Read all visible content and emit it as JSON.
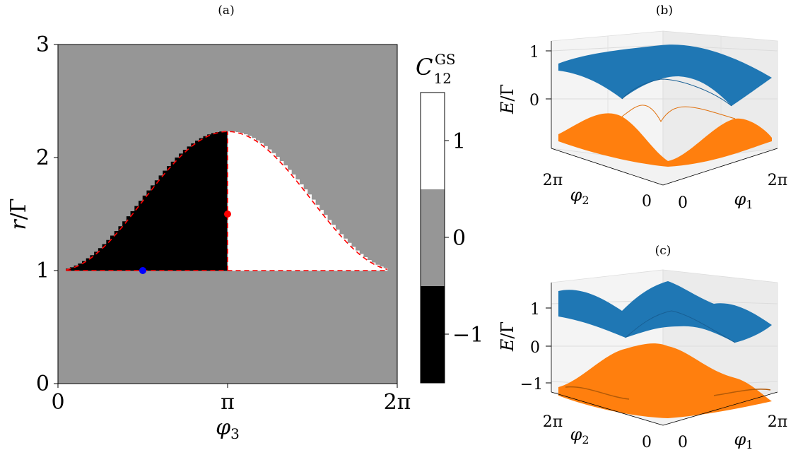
{
  "chart_data": [
    {
      "panel_label": "(a)",
      "type": "heatmap",
      "xlabel": "φ3",
      "xlabel_main": "φ",
      "xlabel_sub": "3",
      "ylabel": "r/Γ",
      "ylabel_var": "r",
      "ylabel_rest": "/Γ",
      "xlim": [
        0,
        6.2832
      ],
      "ylim": [
        0,
        3
      ],
      "x_ticks": [
        0,
        3.1416,
        6.2832
      ],
      "x_tick_labels": [
        "0",
        "π",
        "2π"
      ],
      "y_ticks": [
        0,
        1,
        2,
        3
      ],
      "y_tick_labels": [
        "0",
        "1",
        "2",
        "3"
      ],
      "background_value": 0,
      "regions": [
        {
          "name": "black lobe",
          "value": -1,
          "phi_range": [
            0.15,
            3.1416
          ],
          "r_lower": 1.0,
          "upper_boundary": "r = 1 + 1.23 sin^2(φ/2)"
        },
        {
          "name": "white lobe",
          "value": 1,
          "phi_range": [
            3.1416,
            6.1
          ],
          "r_lower": 1.0,
          "upper_boundary": "r = 1 + 1.23 sin^2(φ/2)"
        }
      ],
      "boundary_curve": {
        "style": "red dashed",
        "r_max": 2.23,
        "r_min": 1.0
      },
      "markers": [
        {
          "color": "#ff0000",
          "x": 3.1416,
          "y": 1.5
        },
        {
          "color": "#0000ff",
          "x": 1.5708,
          "y": 1.0
        }
      ],
      "colorbar": {
        "label": "C12GS",
        "label_main": "C",
        "label_sub": "12",
        "label_sup": "GS",
        "ticks": [
          -1,
          0,
          1
        ],
        "tick_labels": [
          "−1",
          "0",
          "1"
        ],
        "levels": [
          {
            "value": -1,
            "color": "#000000"
          },
          {
            "value": 0,
            "color": "#969696"
          },
          {
            "value": 1,
            "color": "#ffffff"
          }
        ]
      }
    },
    {
      "panel_label": "(b)",
      "type": "surface3d",
      "zlabel": "E/Γ",
      "zlabel_var": "E",
      "zlabel_rest": "/Γ",
      "z_ticks": [
        0,
        1
      ],
      "z_tick_labels": [
        "0",
        "1"
      ],
      "x1_label": "φ1",
      "x1_main": "φ",
      "x1_sub": "1",
      "x2_label": "φ2",
      "x2_main": "φ",
      "x2_sub": "2",
      "x1_tick_labels": [
        "0",
        "2π"
      ],
      "x2_tick_labels": [
        "0",
        "2π"
      ],
      "upper_band_color": "#1f77b4",
      "lower_band_color": "#ff7f0e"
    },
    {
      "panel_label": "(c)",
      "type": "surface3d",
      "zlabel": "E/Γ",
      "zlabel_var": "E",
      "zlabel_rest": "/Γ",
      "z_ticks": [
        -1,
        0,
        1
      ],
      "z_tick_labels": [
        "−1",
        "0",
        "1"
      ],
      "x1_label": "φ1",
      "x1_main": "φ",
      "x1_sub": "1",
      "x2_label": "φ2",
      "x2_main": "φ",
      "x2_sub": "2",
      "x1_tick_labels": [
        "0",
        "2π"
      ],
      "x2_tick_labels": [
        "0",
        "2π"
      ],
      "upper_band_color": "#1f77b4",
      "lower_band_color": "#ff7f0e"
    }
  ]
}
